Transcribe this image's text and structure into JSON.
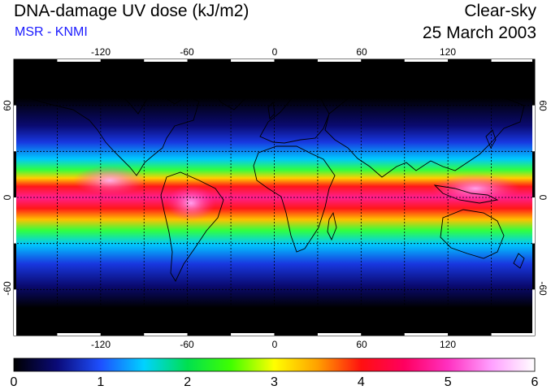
{
  "header": {
    "title": "DNA-damage UV dose (kJ/m2)",
    "subtitle": "MSR - KNMI",
    "condition": "Clear-sky",
    "date": "25 March 2003"
  },
  "colors": {
    "subtitle": "#1a1aff",
    "frame": "#000000",
    "grid": "#000000"
  },
  "map": {
    "projection": "equirectangular",
    "lon_range": [
      -180,
      180
    ],
    "lat_range": [
      -90,
      90
    ],
    "gridlines": true,
    "lon_ticks": [
      "-120",
      "-60",
      "0",
      "60",
      "120"
    ],
    "lat_ticks_left": [
      "60",
      "0",
      "-60"
    ],
    "lat_ticks_right": [
      "60",
      "0",
      "-60"
    ]
  },
  "colorbar": {
    "min": 0,
    "max": 6,
    "tick_labels": [
      "0",
      "1",
      "2",
      "3",
      "4",
      "5",
      "6"
    ],
    "colormap": [
      "#000000",
      "#0a0a78",
      "#1e50ff",
      "#00d2ff",
      "#00e050",
      "#40ff00",
      "#ffff00",
      "#ffa000",
      "#ff1010",
      "#ff0060",
      "#ff30c0",
      "#ffa0ff",
      "#ffffff"
    ]
  }
}
